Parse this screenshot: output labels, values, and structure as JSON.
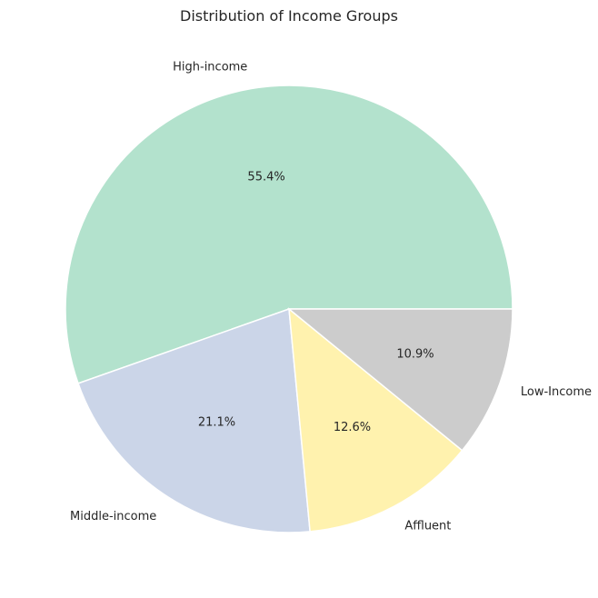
{
  "chart_data": {
    "type": "pie",
    "title": "Distribution of Income Groups",
    "categories": [
      "High-income",
      "Middle-income",
      "Affluent",
      "Low-Income"
    ],
    "values": [
      55.4,
      21.1,
      12.6,
      10.9
    ],
    "percent_labels": [
      "55.4%",
      "21.1%",
      "12.6%",
      "10.9%"
    ],
    "colors": [
      "#b3e2cd",
      "#cbd5e8",
      "#fff2ae",
      "#cccccc"
    ],
    "start_angle_deg": 0,
    "direction": "counterclockwise",
    "legend": "none"
  }
}
